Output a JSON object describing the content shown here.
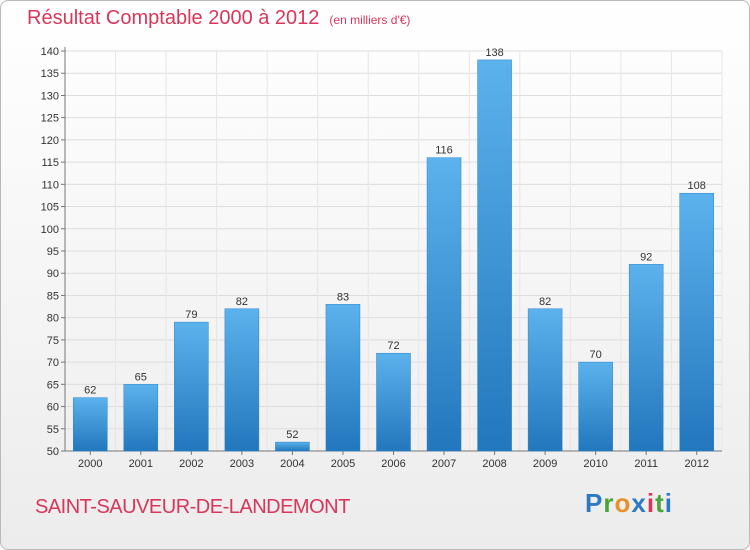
{
  "chart_data": {
    "type": "bar",
    "title": "Résultat Comptable 2000 à 2012",
    "subtitle": "(en milliers d'€)",
    "xlabel": "",
    "ylabel": "",
    "categories": [
      "2000",
      "2001",
      "2002",
      "2003",
      "2004",
      "2005",
      "2006",
      "2007",
      "2008",
      "2009",
      "2010",
      "2011",
      "2012"
    ],
    "values": [
      62,
      65,
      79,
      82,
      52,
      83,
      72,
      116,
      138,
      82,
      70,
      92,
      108
    ],
    "ylim": [
      50,
      140
    ],
    "ytick_step": 5,
    "grid": true,
    "legend": "none"
  },
  "location": "SAINT-SAUVEUR-DE-LANDEMONT",
  "brand": {
    "name": "Proxiti",
    "letters": [
      "P",
      "r",
      "o",
      "x",
      "i",
      "t",
      "i"
    ],
    "letter_colors": [
      "#2d7ac2",
      "#4aa43a",
      "#e8912a",
      "#2d7ac2",
      "#d8365a",
      "#4aa43a",
      "#2d7ac2"
    ]
  },
  "colors": {
    "accent": "#d8365a",
    "bar": "#3d9de0",
    "bar_dark": "#1f6fb2",
    "grid": "#dcdcdc"
  }
}
